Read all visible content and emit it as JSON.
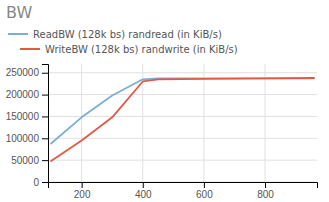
{
  "chart_data": {
    "type": "line",
    "title": "BW",
    "x": [
      100,
      200,
      300,
      400,
      450,
      600,
      800,
      960
    ],
    "series": [
      {
        "name": "ReadBW (128k bs) randread (in KiB/s)",
        "color": "#7bafd4",
        "values": [
          88000,
          148000,
          198000,
          235000,
          237000,
          237000,
          237000,
          237000
        ]
      },
      {
        "name": "WriteBW (128k bs) randwrite (in KiB/s)",
        "color": "#e05a45",
        "values": [
          48000,
          95000,
          148000,
          230000,
          235000,
          236000,
          237000,
          238000
        ]
      }
    ],
    "xlim": [
      90,
      970
    ],
    "ylim": [
      0,
      270000
    ],
    "xticks": [
      200,
      400,
      600,
      800
    ],
    "yticks": [
      0,
      50000,
      100000,
      150000,
      200000,
      250000
    ],
    "grid": true
  }
}
